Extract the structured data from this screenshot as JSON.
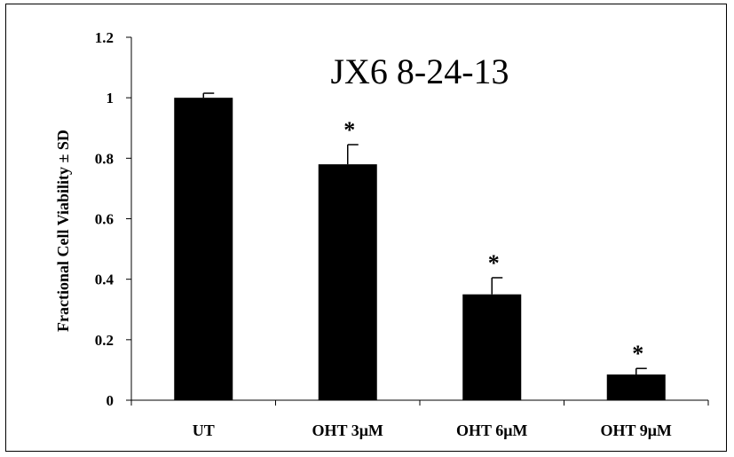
{
  "chart_data": {
    "type": "bar",
    "title": "JX6 8-24-13",
    "xlabel": "",
    "ylabel": "Fractional Cell Viability ± SD",
    "categories": [
      "UT",
      "OHT 3μM",
      "OHT 6μM",
      "OHT 9μM"
    ],
    "values": [
      1.0,
      0.78,
      0.35,
      0.085
    ],
    "errors": [
      0.015,
      0.065,
      0.055,
      0.02
    ],
    "significance": [
      "",
      "*",
      "*",
      "*"
    ],
    "ylim": [
      0,
      1.2
    ],
    "yticks": [
      "0",
      "0.2",
      "0.4",
      "0.6",
      "0.8",
      "1",
      "1.2"
    ],
    "ytick_values": [
      0,
      0.2,
      0.4,
      0.6,
      0.8,
      1.0,
      1.2
    ],
    "grid": false,
    "legend": "none",
    "bar_color": "#000000"
  }
}
